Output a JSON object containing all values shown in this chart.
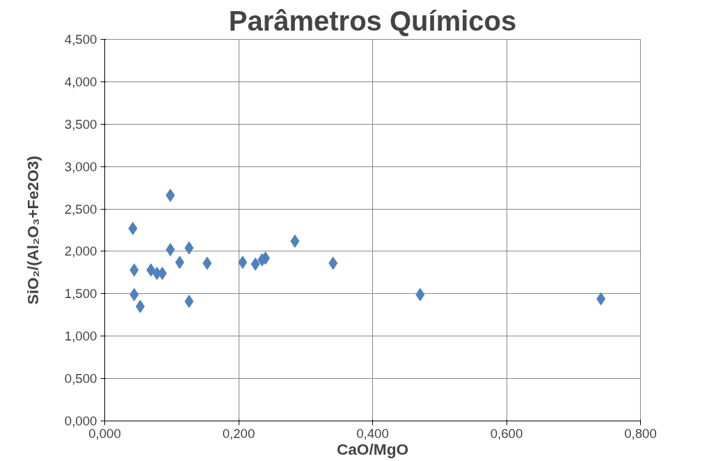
{
  "chart_data": {
    "type": "scatter",
    "title": "Parâmetros Químicos",
    "xlabel": "CaO/MgO",
    "ylabel": "SiO₂/(Al₂O₃+Fe2O3)",
    "x": [
      0.042,
      0.098,
      0.044,
      0.044,
      0.053,
      0.069,
      0.078,
      0.086,
      0.098,
      0.126,
      0.112,
      0.126,
      0.153,
      0.206,
      0.225,
      0.235,
      0.24,
      0.284,
      0.341,
      0.471,
      0.741
    ],
    "series": [
      {
        "color": "#4f81bd",
        "values": [
          2.27,
          2.66,
          1.78,
          1.49,
          1.35,
          1.78,
          1.74,
          1.74,
          2.02,
          2.04,
          1.87,
          1.41,
          1.86,
          1.87,
          1.85,
          1.9,
          1.92,
          2.12,
          1.86,
          1.49,
          1.44
        ]
      }
    ],
    "xlim": [
      0,
      0.8
    ],
    "ylim": [
      0,
      4.5
    ],
    "xticks": [
      {
        "value": 0,
        "label": "0,000"
      },
      {
        "value": 0.2,
        "label": "0,200"
      },
      {
        "value": 0.4,
        "label": "0,400"
      },
      {
        "value": 0.6,
        "label": "0,600"
      },
      {
        "value": 0.8,
        "label": "0,800"
      }
    ],
    "yticks": [
      {
        "value": 0,
        "label": "0,000"
      },
      {
        "value": 0.5,
        "label": "0,500"
      },
      {
        "value": 1,
        "label": "1,000"
      },
      {
        "value": 1.5,
        "label": "1,500"
      },
      {
        "value": 2,
        "label": "2,000"
      },
      {
        "value": 2.5,
        "label": "2,500"
      },
      {
        "value": 3,
        "label": "3,000"
      },
      {
        "value": 3.5,
        "label": "3,500"
      },
      {
        "value": 4,
        "label": "4,000"
      },
      {
        "value": 4.5,
        "label": "4,500"
      }
    ],
    "grid": true,
    "marker": "diamond"
  }
}
